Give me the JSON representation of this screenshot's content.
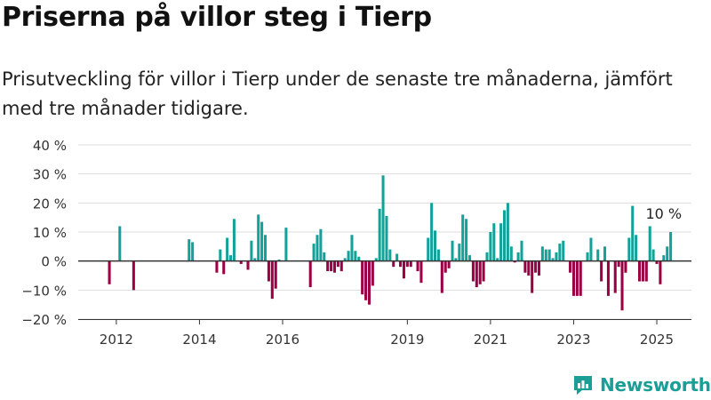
{
  "header": {
    "title": "Priserna på villor steg i Tierp",
    "subtitle": "Prisutveckling för villor i Tierp under de senaste tre månaderna, jämfört med tre månader tidigare."
  },
  "brand": {
    "name": "Newsworthy",
    "logo_icon": "newsworthy-logo-icon",
    "color": "#1a9e96"
  },
  "colors": {
    "positive": "#14a199",
    "negative": "#9b0045",
    "grid": "#dddddd",
    "axis": "#333333"
  },
  "chart_data": {
    "type": "bar",
    "title": "Priserna på villor steg i Tierp",
    "xlabel": "",
    "ylabel": "",
    "ylim": [
      -20,
      40
    ],
    "yticks": [
      40,
      30,
      20,
      10,
      0,
      -10,
      -20
    ],
    "ytick_labels": [
      "40 %",
      "30 %",
      "20 %",
      "10 %",
      "0 %",
      "−10 %",
      "−20 %"
    ],
    "grid": true,
    "x_unit": "month",
    "xlim": [
      "2011-02",
      "2025-11"
    ],
    "x_ticks": [
      {
        "label": "2012",
        "date": "2012-01"
      },
      {
        "label": "2014",
        "date": "2014-01"
      },
      {
        "label": "2016",
        "date": "2016-01"
      },
      {
        "label": "2019",
        "date": "2019-01"
      },
      {
        "label": "2021",
        "date": "2021-01"
      },
      {
        "label": "2023",
        "date": "2023-01"
      },
      {
        "label": "2025",
        "date": "2025-01"
      }
    ],
    "annotation": {
      "text": "10 %",
      "date": "2025-03",
      "value": 10
    },
    "series": [
      {
        "values": [
          {
            "date": "2011-11",
            "value": -8
          },
          {
            "date": "2012-02",
            "value": 12
          },
          {
            "date": "2012-06",
            "value": -10
          },
          {
            "date": "2013-10",
            "value": 7.5
          },
          {
            "date": "2013-11",
            "value": 6.5
          },
          {
            "date": "2014-06",
            "value": -4
          },
          {
            "date": "2014-07",
            "value": 4
          },
          {
            "date": "2014-08",
            "value": -4.5
          },
          {
            "date": "2014-09",
            "value": 8
          },
          {
            "date": "2014-10",
            "value": 2
          },
          {
            "date": "2014-11",
            "value": 14.5
          },
          {
            "date": "2015-01",
            "value": -1
          },
          {
            "date": "2015-03",
            "value": -3
          },
          {
            "date": "2015-04",
            "value": 7
          },
          {
            "date": "2015-05",
            "value": 1
          },
          {
            "date": "2015-06",
            "value": 16
          },
          {
            "date": "2015-07",
            "value": 13.5
          },
          {
            "date": "2015-08",
            "value": 9
          },
          {
            "date": "2015-09",
            "value": -7
          },
          {
            "date": "2015-10",
            "value": -13
          },
          {
            "date": "2015-11",
            "value": -9.5
          },
          {
            "date": "2015-12",
            "value": 0.5
          },
          {
            "date": "2016-02",
            "value": 11.5
          },
          {
            "date": "2016-09",
            "value": -9
          },
          {
            "date": "2016-10",
            "value": 6
          },
          {
            "date": "2016-11",
            "value": 9
          },
          {
            "date": "2016-12",
            "value": 11
          },
          {
            "date": "2017-01",
            "value": 3
          },
          {
            "date": "2017-02",
            "value": -3.5
          },
          {
            "date": "2017-03",
            "value": -3.5
          },
          {
            "date": "2017-04",
            "value": -4
          },
          {
            "date": "2017-05",
            "value": -2
          },
          {
            "date": "2017-06",
            "value": -3.5
          },
          {
            "date": "2017-07",
            "value": 1
          },
          {
            "date": "2017-08",
            "value": 3.5
          },
          {
            "date": "2017-09",
            "value": 9
          },
          {
            "date": "2017-10",
            "value": 3.5
          },
          {
            "date": "2017-11",
            "value": 1.5
          },
          {
            "date": "2017-12",
            "value": -11.5
          },
          {
            "date": "2018-01",
            "value": -13.5
          },
          {
            "date": "2018-02",
            "value": -15
          },
          {
            "date": "2018-03",
            "value": -8.5
          },
          {
            "date": "2018-04",
            "value": 1
          },
          {
            "date": "2018-05",
            "value": 18
          },
          {
            "date": "2018-06",
            "value": 29.5
          },
          {
            "date": "2018-07",
            "value": 15.5
          },
          {
            "date": "2018-08",
            "value": 4
          },
          {
            "date": "2018-09",
            "value": -2
          },
          {
            "date": "2018-10",
            "value": 2.5
          },
          {
            "date": "2018-11",
            "value": -2
          },
          {
            "date": "2018-12",
            "value": -6
          },
          {
            "date": "2019-01",
            "value": -2
          },
          {
            "date": "2019-02",
            "value": -2
          },
          {
            "date": "2019-04",
            "value": -3.5
          },
          {
            "date": "2019-05",
            "value": -7.5
          },
          {
            "date": "2019-07",
            "value": 8
          },
          {
            "date": "2019-08",
            "value": 20
          },
          {
            "date": "2019-09",
            "value": 10.5
          },
          {
            "date": "2019-10",
            "value": 4
          },
          {
            "date": "2019-11",
            "value": -11
          },
          {
            "date": "2019-12",
            "value": -4
          },
          {
            "date": "2020-01",
            "value": -2.5
          },
          {
            "date": "2020-02",
            "value": 7
          },
          {
            "date": "2020-03",
            "value": 1
          },
          {
            "date": "2020-04",
            "value": 6
          },
          {
            "date": "2020-05",
            "value": 16
          },
          {
            "date": "2020-06",
            "value": 14.5
          },
          {
            "date": "2020-07",
            "value": 2
          },
          {
            "date": "2020-08",
            "value": -7
          },
          {
            "date": "2020-09",
            "value": -9
          },
          {
            "date": "2020-10",
            "value": -8
          },
          {
            "date": "2020-11",
            "value": -7
          },
          {
            "date": "2020-12",
            "value": 3
          },
          {
            "date": "2021-01",
            "value": 10
          },
          {
            "date": "2021-02",
            "value": 13
          },
          {
            "date": "2021-03",
            "value": 1
          },
          {
            "date": "2021-04",
            "value": 13
          },
          {
            "date": "2021-05",
            "value": 17.5
          },
          {
            "date": "2021-06",
            "value": 20
          },
          {
            "date": "2021-07",
            "value": 5
          },
          {
            "date": "2021-08",
            "value": -0.5
          },
          {
            "date": "2021-09",
            "value": 3
          },
          {
            "date": "2021-10",
            "value": 7
          },
          {
            "date": "2021-11",
            "value": -4
          },
          {
            "date": "2021-12",
            "value": -5
          },
          {
            "date": "2022-01",
            "value": -11
          },
          {
            "date": "2022-02",
            "value": -4
          },
          {
            "date": "2022-03",
            "value": -5
          },
          {
            "date": "2022-04",
            "value": 5
          },
          {
            "date": "2022-05",
            "value": 4
          },
          {
            "date": "2022-06",
            "value": 4
          },
          {
            "date": "2022-07",
            "value": 1
          },
          {
            "date": "2022-08",
            "value": 3
          },
          {
            "date": "2022-09",
            "value": 6
          },
          {
            "date": "2022-10",
            "value": 7
          },
          {
            "date": "2022-12",
            "value": -4
          },
          {
            "date": "2023-01",
            "value": -12
          },
          {
            "date": "2023-02",
            "value": -12
          },
          {
            "date": "2023-03",
            "value": -12
          },
          {
            "date": "2023-05",
            "value": 3
          },
          {
            "date": "2023-06",
            "value": 8
          },
          {
            "date": "2023-08",
            "value": 4
          },
          {
            "date": "2023-09",
            "value": -7
          },
          {
            "date": "2023-10",
            "value": 5
          },
          {
            "date": "2023-11",
            "value": -12
          },
          {
            "date": "2024-01",
            "value": -11
          },
          {
            "date": "2024-02",
            "value": -2
          },
          {
            "date": "2024-03",
            "value": -17
          },
          {
            "date": "2024-04",
            "value": -4
          },
          {
            "date": "2024-05",
            "value": 8
          },
          {
            "date": "2024-06",
            "value": 19
          },
          {
            "date": "2024-07",
            "value": 9
          },
          {
            "date": "2024-08",
            "value": -7
          },
          {
            "date": "2024-09",
            "value": -7
          },
          {
            "date": "2024-10",
            "value": -7
          },
          {
            "date": "2024-11",
            "value": 12
          },
          {
            "date": "2024-12",
            "value": 4
          },
          {
            "date": "2025-01",
            "value": -1
          },
          {
            "date": "2025-02",
            "value": -8
          },
          {
            "date": "2025-03",
            "value": 2
          },
          {
            "date": "2025-04",
            "value": 5
          },
          {
            "date": "2025-05",
            "value": 10
          }
        ]
      }
    ]
  }
}
